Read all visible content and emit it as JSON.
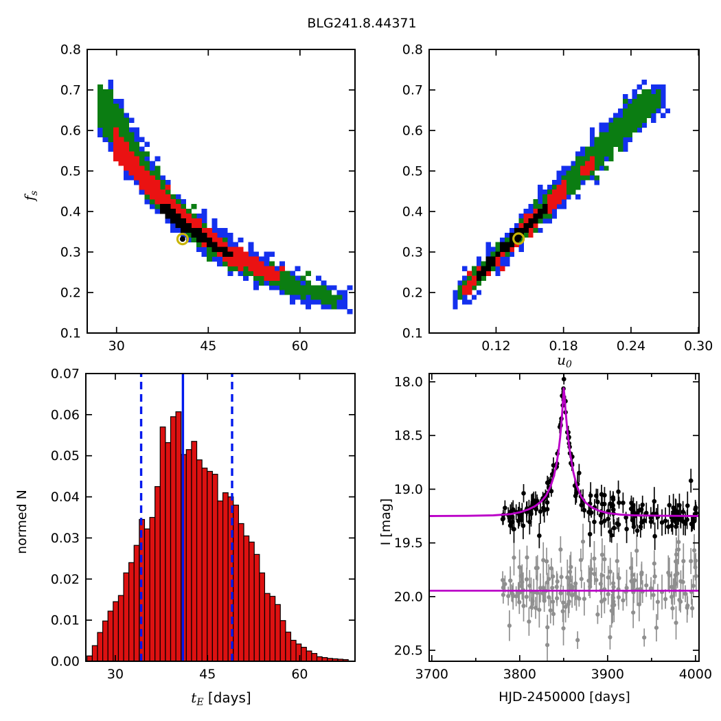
{
  "title": "BLG241.8.44371",
  "colors": {
    "sigma3_blue": "#1430ee",
    "sigma2_green": "#0b7d12",
    "sigma1_red": "#ea1212",
    "core_black": "#000000",
    "best_fit_ring_yellow": "#c9b509",
    "hist_fill": "#dd1111",
    "hist_edge": "#000000",
    "vline_blue": "#0019ee",
    "model_magenta": "#bb00c8",
    "data_black": "#000000",
    "data_gray": "#8f8f8f",
    "frame": "#000000"
  },
  "chart_data": [
    {
      "id": "te_fs",
      "type": "heatmap",
      "description": "MCMC confidence-region density of blend flux fraction f_s versus Einstein time t_E; nested 3/2/1-sigma and core regions with best-fit marker",
      "xlabel": "",
      "ylabel": "f_s",
      "ylabel_parts": [
        {
          "text": "f",
          "style": "italic"
        },
        {
          "text": "s",
          "style": "sub"
        }
      ],
      "xlim": [
        25.2,
        69.0
      ],
      "ylim": [
        0.1,
        0.8
      ],
      "xticks": [
        30,
        45,
        60
      ],
      "xticklabels": [
        "30",
        "45",
        "60"
      ],
      "yticks": [
        0.1,
        0.2,
        0.3,
        0.4,
        0.5,
        0.6,
        0.7,
        0.8
      ],
      "yticklabels": [
        "0.1",
        "0.2",
        "0.3",
        "0.4",
        "0.5",
        "0.6",
        "0.7",
        "0.8"
      ],
      "grid": false,
      "cell": [
        0.85,
        0.0118
      ],
      "seed": 11,
      "best_fit": {
        "x": 40.8,
        "y": 0.332
      },
      "layers": [
        {
          "name": "3-sigma",
          "color": "sigma3_blue",
          "jitter": 1.7,
          "fringe": 0.55,
          "envelope": [
            [
              26.8,
              0.6,
              0.71
            ],
            [
              29,
              0.553,
              0.695
            ],
            [
              31,
              0.513,
              0.648
            ],
            [
              33,
              0.466,
              0.58
            ],
            [
              35,
              0.426,
              0.528
            ],
            [
              37,
              0.392,
              0.483
            ],
            [
              39,
              0.362,
              0.444
            ],
            [
              41,
              0.336,
              0.412
            ],
            [
              43,
              0.312,
              0.383
            ],
            [
              45,
              0.291,
              0.358
            ],
            [
              47,
              0.272,
              0.336
            ],
            [
              49,
              0.255,
              0.313
            ],
            [
              51,
              0.24,
              0.293
            ],
            [
              53,
              0.226,
              0.276
            ],
            [
              55,
              0.213,
              0.261
            ],
            [
              57,
              0.202,
              0.246
            ],
            [
              59,
              0.192,
              0.232
            ],
            [
              61,
              0.184,
              0.219
            ],
            [
              63,
              0.177,
              0.206
            ],
            [
              65,
              0.173,
              0.195
            ],
            [
              66.5,
              0.171,
              0.188
            ],
            [
              67.8,
              0.17,
              0.182
            ]
          ]
        },
        {
          "name": "2-sigma",
          "color": "sigma2_green",
          "jitter": 1.2,
          "fringe": 0.15,
          "envelope": [
            [
              27,
              0.61,
              0.7
            ],
            [
              29,
              0.565,
              0.685
            ],
            [
              31,
              0.525,
              0.635
            ],
            [
              33,
              0.478,
              0.568
            ],
            [
              35,
              0.438,
              0.517
            ],
            [
              37,
              0.403,
              0.472
            ],
            [
              39,
              0.373,
              0.433
            ],
            [
              41,
              0.346,
              0.401
            ],
            [
              43,
              0.322,
              0.373
            ],
            [
              45,
              0.3,
              0.348
            ],
            [
              47,
              0.281,
              0.326
            ],
            [
              49,
              0.263,
              0.303
            ],
            [
              51,
              0.247,
              0.284
            ],
            [
              53,
              0.232,
              0.268
            ],
            [
              55,
              0.219,
              0.253
            ],
            [
              57,
              0.207,
              0.238
            ],
            [
              59,
              0.197,
              0.225
            ],
            [
              61,
              0.188,
              0.213
            ],
            [
              63,
              0.181,
              0.199
            ],
            [
              65,
              0.176,
              0.189
            ],
            [
              67,
              0.174,
              0.183
            ]
          ]
        },
        {
          "name": "1-sigma",
          "color": "sigma1_red",
          "jitter": 1.0,
          "fringe": 0.1,
          "envelope": [
            [
              29.6,
              0.545,
              0.592
            ],
            [
              31,
              0.515,
              0.566
            ],
            [
              33,
              0.48,
              0.527
            ],
            [
              35,
              0.445,
              0.49
            ],
            [
              37,
              0.412,
              0.455
            ],
            [
              39,
              0.382,
              0.422
            ],
            [
              41,
              0.355,
              0.393
            ],
            [
              43,
              0.33,
              0.367
            ],
            [
              45,
              0.308,
              0.344
            ],
            [
              47,
              0.289,
              0.323
            ],
            [
              49,
              0.272,
              0.304
            ],
            [
              51,
              0.256,
              0.287
            ],
            [
              53,
              0.243,
              0.271
            ],
            [
              55,
              0.231,
              0.257
            ],
            [
              56.5,
              0.225,
              0.248
            ]
          ]
        },
        {
          "name": "core",
          "color": "core_black",
          "jitter": 0.8,
          "fringe": 0,
          "envelope": [
            [
              36.9,
              0.4,
              0.417
            ],
            [
              39,
              0.375,
              0.392
            ],
            [
              41,
              0.352,
              0.369
            ],
            [
              43,
              0.331,
              0.347
            ],
            [
              45,
              0.312,
              0.327
            ],
            [
              47,
              0.294,
              0.308
            ],
            [
              48.8,
              0.281,
              0.294
            ]
          ]
        }
      ]
    },
    {
      "id": "u0_fs",
      "type": "heatmap",
      "description": "MCMC confidence-region density of f_s versus impact parameter u_0",
      "xlabel": "u_0",
      "xlabel_parts": [
        {
          "text": "u",
          "style": "italic"
        },
        {
          "text": "0",
          "style": "sub"
        }
      ],
      "ylabel": "f_s",
      "xlim": [
        0.0605,
        0.3005
      ],
      "ylim": [
        0.1,
        0.8
      ],
      "xticks": [
        0.12,
        0.18,
        0.24,
        0.3
      ],
      "xticklabels": [
        "0.12",
        "0.18",
        "0.24",
        "0.30"
      ],
      "yticks": [
        0.1,
        0.2,
        0.3,
        0.4,
        0.5,
        0.6,
        0.7,
        0.8
      ],
      "yticklabels": [
        "0.1",
        "0.2",
        "0.3",
        "0.4",
        "0.5",
        "0.6",
        "0.7",
        "0.8"
      ],
      "grid": false,
      "cell": [
        0.0042,
        0.0118
      ],
      "seed": 23,
      "best_fit": {
        "x": 0.14,
        "y": 0.333
      },
      "layers": [
        {
          "name": "3-sigma",
          "color": "sigma3_blue",
          "jitter": 1.7,
          "fringe": 0.55,
          "envelope": [
            [
              0.083,
              0.172,
              0.196
            ],
            [
              0.1,
              0.208,
              0.243
            ],
            [
              0.12,
              0.259,
              0.303
            ],
            [
              0.14,
              0.312,
              0.364
            ],
            [
              0.16,
              0.366,
              0.425
            ],
            [
              0.18,
              0.42,
              0.487
            ],
            [
              0.2,
              0.474,
              0.548
            ],
            [
              0.22,
              0.528,
              0.608
            ],
            [
              0.24,
              0.582,
              0.664
            ],
            [
              0.255,
              0.622,
              0.693
            ],
            [
              0.266,
              0.651,
              0.7
            ],
            [
              0.272,
              0.664,
              0.698
            ]
          ]
        },
        {
          "name": "2-sigma",
          "color": "sigma2_green",
          "jitter": 1.2,
          "fringe": 0.15,
          "envelope": [
            [
              0.085,
              0.175,
              0.192
            ],
            [
              0.1,
              0.214,
              0.237
            ],
            [
              0.12,
              0.266,
              0.296
            ],
            [
              0.14,
              0.319,
              0.356
            ],
            [
              0.16,
              0.373,
              0.417
            ],
            [
              0.18,
              0.427,
              0.478
            ],
            [
              0.2,
              0.481,
              0.539
            ],
            [
              0.22,
              0.536,
              0.598
            ],
            [
              0.24,
              0.59,
              0.655
            ],
            [
              0.255,
              0.63,
              0.685
            ],
            [
              0.266,
              0.658,
              0.694
            ]
          ]
        },
        {
          "name": "1-sigma",
          "color": "sigma1_red",
          "jitter": 1.0,
          "fringe": 0.1,
          "gap_prob": 0.4,
          "gap_from": 0.158,
          "envelope": [
            [
              0.088,
              0.183,
              0.198
            ],
            [
              0.1,
              0.216,
              0.234
            ],
            [
              0.12,
              0.27,
              0.291
            ],
            [
              0.14,
              0.324,
              0.35
            ],
            [
              0.16,
              0.378,
              0.407
            ],
            [
              0.18,
              0.432,
              0.464
            ],
            [
              0.195,
              0.473,
              0.506
            ],
            [
              0.206,
              0.502,
              0.528
            ]
          ]
        },
        {
          "name": "core",
          "color": "core_black",
          "jitter": 0.8,
          "fringe": 0,
          "envelope": [
            [
              0.101,
              0.221,
              0.232
            ],
            [
              0.12,
              0.276,
              0.289
            ],
            [
              0.14,
              0.33,
              0.346
            ],
            [
              0.155,
              0.371,
              0.385
            ],
            [
              0.166,
              0.398,
              0.41
            ]
          ]
        }
      ]
    },
    {
      "id": "te_hist",
      "type": "bar",
      "description": "Normalized posterior histogram of Einstein timescale t_E with median (solid) and 1-sigma bounds (dashed)",
      "xlabel": "t_E [days]",
      "xlabel_parts": [
        {
          "text": "t",
          "style": "italic"
        },
        {
          "text": "E",
          "style": "sub"
        },
        {
          "text": " [days]",
          "style": "normal-sans"
        }
      ],
      "ylabel": "normed N",
      "xlim": [
        25.2,
        69.0
      ],
      "ylim": [
        0.0,
        0.07
      ],
      "xticks": [
        30,
        45,
        60
      ],
      "xticklabels": [
        "30",
        "45",
        "60"
      ],
      "yticks": [
        0.0,
        0.01,
        0.02,
        0.03,
        0.04,
        0.05,
        0.06,
        0.07
      ],
      "yticklabels": [
        "0.00",
        "0.01",
        "0.02",
        "0.03",
        "0.04",
        "0.05",
        "0.06",
        "0.07"
      ],
      "grid": false,
      "bin_start": 25.4,
      "bin_width": 0.85,
      "values": [
        0.0013,
        0.0038,
        0.007,
        0.0098,
        0.0122,
        0.0145,
        0.016,
        0.0215,
        0.024,
        0.0282,
        0.0345,
        0.0322,
        0.035,
        0.0425,
        0.057,
        0.0532,
        0.0595,
        0.0607,
        0.0503,
        0.0515,
        0.0535,
        0.049,
        0.047,
        0.0462,
        0.0455,
        0.039,
        0.041,
        0.04,
        0.038,
        0.0335,
        0.0305,
        0.029,
        0.026,
        0.0215,
        0.0165,
        0.0158,
        0.0138,
        0.0099,
        0.0071,
        0.0051,
        0.0042,
        0.0034,
        0.0025,
        0.0019,
        0.0011,
        0.0009,
        0.0007,
        0.0006,
        0.0005,
        0.0004
      ],
      "sigma_lines": {
        "median": 41.0,
        "lower": 34.2,
        "upper": 49.0
      }
    },
    {
      "id": "lightcurve",
      "type": "scatter",
      "description": "I-band light curve with Paczynski model fit (magenta), observed points (black) and baseline/blend comparison points (gray) with flat model line",
      "xlabel": "HJD-2450000 [days]",
      "ylabel": "I [mag]",
      "xlim": [
        3697,
        4004
      ],
      "ylim_mag_bottom_top": [
        20.602,
        17.923
      ],
      "xticks": [
        3700,
        3800,
        3900,
        4000
      ],
      "xticklabels": [
        "3700",
        "3800",
        "3900",
        "4000"
      ],
      "xminorticks": [
        3750,
        3850,
        3950
      ],
      "yticks": [
        18.0,
        18.5,
        19.0,
        19.5,
        20.0,
        20.5
      ],
      "yticklabels": [
        "18.0",
        "18.5",
        "19.0",
        "19.5",
        "20.0",
        "20.5"
      ],
      "grid": false,
      "model_curve": [
        [
          3697,
          19.25
        ],
        [
          3740,
          19.248
        ],
        [
          3770,
          19.243
        ],
        [
          3790,
          19.232
        ],
        [
          3800,
          19.215
        ],
        [
          3810,
          19.188
        ],
        [
          3818,
          19.155
        ],
        [
          3825,
          19.11
        ],
        [
          3830,
          19.06
        ],
        [
          3835,
          18.975
        ],
        [
          3839,
          18.875
        ],
        [
          3842,
          18.76
        ],
        [
          3844,
          18.655
        ],
        [
          3846,
          18.52
        ],
        [
          3848,
          18.33
        ],
        [
          3849,
          18.2
        ],
        [
          3850,
          18.06
        ],
        [
          3851,
          18.13
        ],
        [
          3852,
          18.25
        ],
        [
          3854,
          18.44
        ],
        [
          3856,
          18.58
        ],
        [
          3858,
          18.7
        ],
        [
          3861,
          18.84
        ],
        [
          3865,
          18.97
        ],
        [
          3870,
          19.07
        ],
        [
          3875,
          19.125
        ],
        [
          3882,
          19.17
        ],
        [
          3890,
          19.2
        ],
        [
          3900,
          19.222
        ],
        [
          3915,
          19.237
        ],
        [
          3930,
          19.243
        ],
        [
          3960,
          19.247
        ],
        [
          4004,
          19.25
        ]
      ],
      "baseline_mag": 19.25,
      "peak_mag": 18.06,
      "peak_time": 3850,
      "blend_line_mag": 19.945,
      "points": {
        "t_min": 3778,
        "t_max": 4005,
        "n": 178,
        "seed": 97,
        "black": {
          "err_base": 0.05,
          "err_spread": 0.09,
          "scatter_factor": 1.1
        },
        "gray": {
          "center": 19.945,
          "err_base": 0.07,
          "err_spread": 0.1,
          "scatter_factor": 1.3,
          "outlier_prob": 0.03
        },
        "black_anchors": [
          [
            3850.3,
            17.975,
            0.05
          ],
          [
            3848.2,
            18.13,
            0.05
          ],
          [
            3852.1,
            18.18,
            0.05
          ],
          [
            3845.6,
            18.42,
            0.06
          ],
          [
            3855.3,
            18.47,
            0.06
          ]
        ]
      }
    }
  ]
}
